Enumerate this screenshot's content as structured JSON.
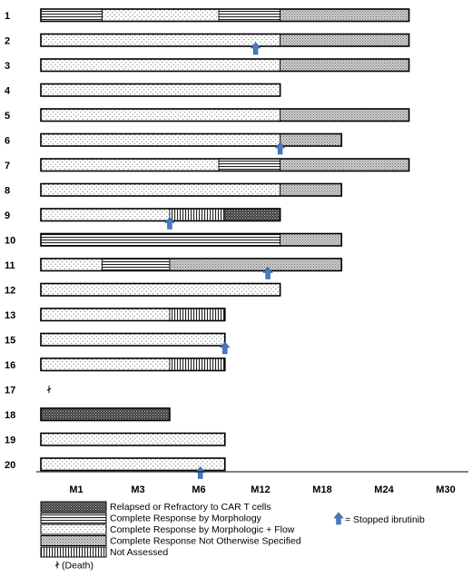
{
  "chart_data": {
    "type": "swimmer",
    "x_ticks": [
      "M1",
      "M3",
      "M6",
      "M12",
      "M18",
      "M24",
      "M30"
    ],
    "patients": [
      {
        "label": "1",
        "segments": [
          {
            "category": "morph",
            "end": 1.0
          },
          {
            "category": "flow",
            "end": 2.9
          },
          {
            "category": "morph",
            "end": 3.9
          },
          {
            "category": "nos",
            "end": 6.0
          }
        ],
        "ibrutinib_stop": null,
        "death": false
      },
      {
        "label": "2",
        "segments": [
          {
            "category": "flow",
            "end": 3.9
          },
          {
            "category": "nos",
            "end": 6.0
          }
        ],
        "ibrutinib_stop": 3.5,
        "death": false
      },
      {
        "label": "3",
        "segments": [
          {
            "category": "flow",
            "end": 3.9
          },
          {
            "category": "nos",
            "end": 6.0
          }
        ],
        "ibrutinib_stop": null,
        "death": false
      },
      {
        "label": "4",
        "segments": [
          {
            "category": "flow",
            "end": 3.9
          }
        ],
        "ibrutinib_stop": null,
        "death": false
      },
      {
        "label": "5",
        "segments": [
          {
            "category": "flow",
            "end": 3.9
          },
          {
            "category": "nos",
            "end": 6.0
          }
        ],
        "ibrutinib_stop": null,
        "death": false
      },
      {
        "label": "6",
        "segments": [
          {
            "category": "flow",
            "end": 3.9
          },
          {
            "category": "nos",
            "end": 4.9
          }
        ],
        "ibrutinib_stop": 3.9,
        "death": false
      },
      {
        "label": "7",
        "segments": [
          {
            "category": "flow",
            "end": 2.9
          },
          {
            "category": "morph",
            "end": 3.9
          },
          {
            "category": "nos",
            "end": 6.0
          }
        ],
        "ibrutinib_stop": null,
        "death": false
      },
      {
        "label": "8",
        "segments": [
          {
            "category": "flow",
            "end": 3.9
          },
          {
            "category": "nos",
            "end": 4.9
          }
        ],
        "ibrutinib_stop": null,
        "death": false
      },
      {
        "label": "9",
        "segments": [
          {
            "category": "flow",
            "end": 2.1
          },
          {
            "category": "na",
            "end": 3.0
          },
          {
            "category": "relapsed",
            "end": 3.9
          }
        ],
        "ibrutinib_stop": 2.1,
        "death": false
      },
      {
        "label": "10",
        "segments": [
          {
            "category": "morph",
            "end": 3.9
          },
          {
            "category": "nos",
            "end": 4.9
          }
        ],
        "ibrutinib_stop": null,
        "death": false
      },
      {
        "label": "11",
        "segments": [
          {
            "category": "flow",
            "end": 1.0
          },
          {
            "category": "morph",
            "end": 2.1
          },
          {
            "category": "nos",
            "end": 4.9
          }
        ],
        "ibrutinib_stop": 3.7,
        "death": false
      },
      {
        "label": "12",
        "segments": [
          {
            "category": "flow",
            "end": 3.9
          }
        ],
        "ibrutinib_stop": null,
        "death": false
      },
      {
        "label": "13",
        "segments": [
          {
            "category": "flow",
            "end": 2.1
          },
          {
            "category": "na",
            "end": 3.0
          }
        ],
        "ibrutinib_stop": null,
        "death": false
      },
      {
        "label": "15",
        "segments": [
          {
            "category": "flow",
            "end": 3.0
          }
        ],
        "ibrutinib_stop": 3.0,
        "death": false
      },
      {
        "label": "16",
        "segments": [
          {
            "category": "flow",
            "end": 2.1
          },
          {
            "category": "na",
            "end": 3.0
          }
        ],
        "ibrutinib_stop": null,
        "death": false
      },
      {
        "label": "17",
        "segments": [],
        "ibrutinib_stop": null,
        "death": true
      },
      {
        "label": "18",
        "segments": [
          {
            "category": "relapsed",
            "end": 2.1
          }
        ],
        "ibrutinib_stop": null,
        "death": false
      },
      {
        "label": "19",
        "segments": [
          {
            "category": "flow",
            "end": 3.0
          }
        ],
        "ibrutinib_stop": null,
        "death": false
      },
      {
        "label": "20",
        "segments": [
          {
            "category": "flow",
            "end": 3.0
          }
        ],
        "ibrutinib_stop": 2.6,
        "death": false
      }
    ],
    "legend": [
      {
        "category": "relapsed",
        "label": "Relapsed or Refractory to CAR T cells"
      },
      {
        "category": "morph",
        "label": "Complete Response by Morphology"
      },
      {
        "category": "flow",
        "label": "Complete Response by Morphologic + Flow"
      },
      {
        "category": "nos",
        "label": "Complete Response Not Otherwise Specified"
      },
      {
        "category": "na",
        "label": "Not Assessed"
      }
    ],
    "death_label": "(Death)",
    "arrow_label": "= Stopped ibrutinib",
    "grid": false,
    "legend_position": "bottom"
  }
}
